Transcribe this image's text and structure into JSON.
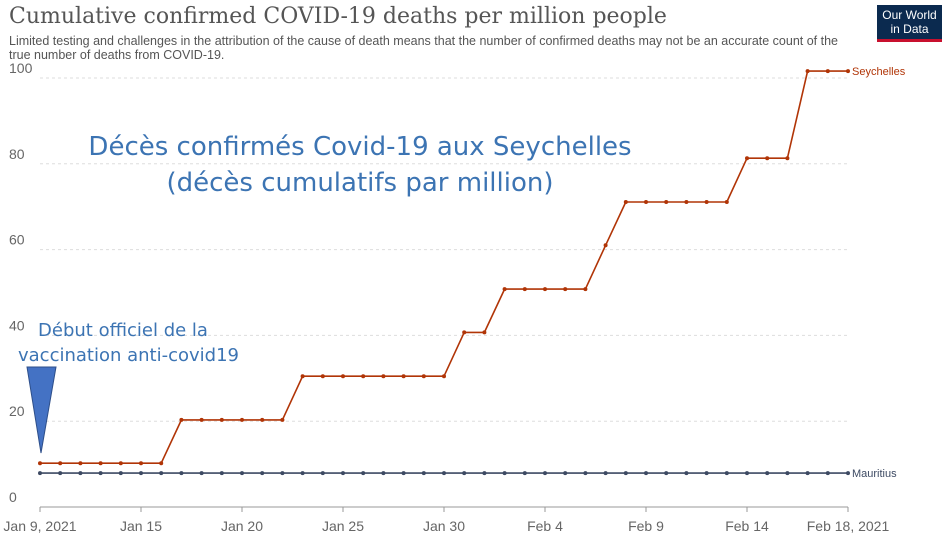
{
  "header": {
    "title": "Cumulative confirmed COVID-19 deaths per million people",
    "subtitle": "Limited testing and challenges in the attribution of the cause of death means that the number of confirmed deaths may not be an accurate count of the true number of deaths from COVID-19."
  },
  "logo": {
    "line1": "Our World",
    "line2": "in Data",
    "bg_color": "#0b2a4f",
    "bar_color": "#c8102e"
  },
  "annotations": {
    "main_line1": "Décès confirmés Covid-19 aux Seychelles",
    "main_line2": "(décès cumulatifs par million)",
    "vaccination_line1": "Début officiel de la",
    "vaccination_line2": "vaccination anti-covid19",
    "marker_color": "#4472c4",
    "text_color": "#3c74b3"
  },
  "chart_data": {
    "type": "line",
    "title": "Cumulative confirmed COVID-19 deaths per million people",
    "xlabel": "",
    "ylabel": "",
    "x_start": "Jan 9, 2021",
    "x_end": "Feb 18, 2021",
    "x_ticks": [
      "Jan 9, 2021",
      "Jan 15",
      "Jan 20",
      "Jan 25",
      "Jan 30",
      "Feb 4",
      "Feb 9",
      "Feb 14",
      "Feb 18, 2021"
    ],
    "x_tick_dates": [
      "2021-01-09",
      "2021-01-14",
      "2021-01-19",
      "2021-01-24",
      "2021-01-29",
      "2021-02-03",
      "2021-02-08",
      "2021-02-13",
      "2021-02-18"
    ],
    "ylim": [
      0,
      100
    ],
    "y_ticks": [
      0,
      20,
      40,
      60,
      80,
      100
    ],
    "grid": true,
    "legend": "end-labels",
    "x": [
      "2021-01-09",
      "2021-01-10",
      "2021-01-11",
      "2021-01-12",
      "2021-01-13",
      "2021-01-14",
      "2021-01-15",
      "2021-01-16",
      "2021-01-17",
      "2021-01-18",
      "2021-01-19",
      "2021-01-20",
      "2021-01-21",
      "2021-01-22",
      "2021-01-23",
      "2021-01-24",
      "2021-01-25",
      "2021-01-26",
      "2021-01-27",
      "2021-01-28",
      "2021-01-29",
      "2021-01-30",
      "2021-01-31",
      "2021-02-01",
      "2021-02-02",
      "2021-02-03",
      "2021-02-04",
      "2021-02-05",
      "2021-02-06",
      "2021-02-07",
      "2021-02-08",
      "2021-02-09",
      "2021-02-10",
      "2021-02-11",
      "2021-02-12",
      "2021-02-13",
      "2021-02-14",
      "2021-02-15",
      "2021-02-16",
      "2021-02-17",
      "2021-02-18"
    ],
    "series": [
      {
        "name": "Seychelles",
        "color": "#b13507",
        "values": [
          10.2,
          10.2,
          10.2,
          10.2,
          10.2,
          10.2,
          10.2,
          20.3,
          20.3,
          20.3,
          20.3,
          20.3,
          20.3,
          30.5,
          30.5,
          30.5,
          30.5,
          30.5,
          30.5,
          30.5,
          30.5,
          40.7,
          40.7,
          50.8,
          50.8,
          50.8,
          50.8,
          50.8,
          61.0,
          71.1,
          71.1,
          71.1,
          71.1,
          71.1,
          71.1,
          81.3,
          81.3,
          81.3,
          101.6,
          101.6,
          101.6
        ]
      },
      {
        "name": "Mauritius",
        "color": "#3d4a63",
        "values": [
          7.9,
          7.9,
          7.9,
          7.9,
          7.9,
          7.9,
          7.9,
          7.9,
          7.9,
          7.9,
          7.9,
          7.9,
          7.9,
          7.9,
          7.9,
          7.9,
          7.9,
          7.9,
          7.9,
          7.9,
          7.9,
          7.9,
          7.9,
          7.9,
          7.9,
          7.9,
          7.9,
          7.9,
          7.9,
          7.9,
          7.9,
          7.9,
          7.9,
          7.9,
          7.9,
          7.9,
          7.9,
          7.9,
          7.9,
          7.9,
          7.9
        ]
      }
    ],
    "vaccination_marker_date": "2021-01-09"
  }
}
